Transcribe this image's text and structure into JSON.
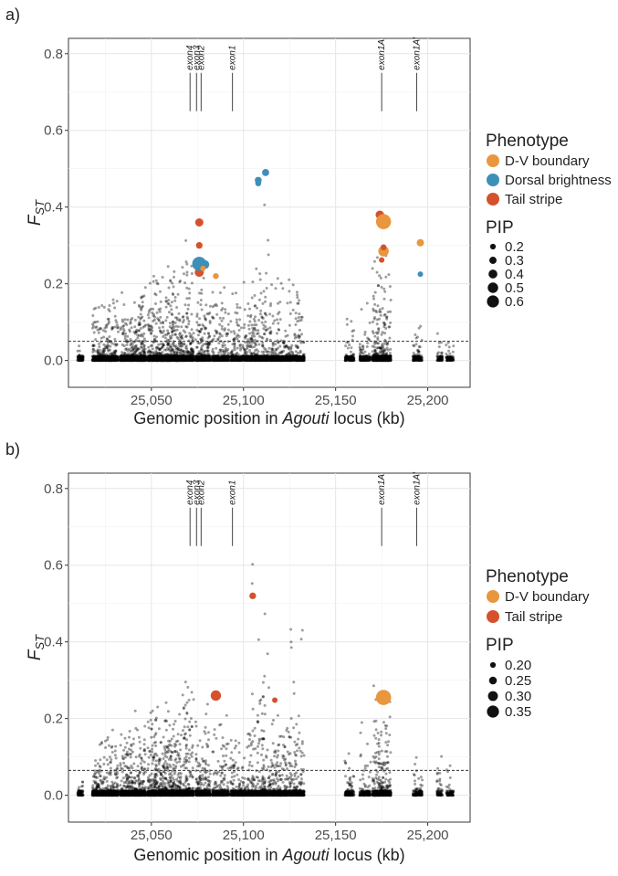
{
  "colors": {
    "dv_boundary": "#e8973f",
    "dorsal_brightness": "#3d8fb8",
    "tail_stripe": "#d4512c",
    "background_point": "#000000",
    "threshold": "#333333"
  },
  "chart_data": [
    {
      "panel": "a)",
      "type": "scatter",
      "xlabel_pre": "Genomic position in ",
      "xlabel_em": "Agouti",
      "xlabel_post": " locus (kb)",
      "ylabel_main": "F",
      "ylabel_sub": "ST",
      "xlim": [
        25005,
        25223
      ],
      "ylim": [
        -0.07,
        0.84
      ],
      "xticks": [
        25050,
        25100,
        25150,
        25200
      ],
      "xtick_labels": [
        "25,050",
        "25,100",
        "25,150",
        "25,200"
      ],
      "yticks": [
        0.0,
        0.2,
        0.4,
        0.6,
        0.8
      ],
      "ytick_labels": [
        "0.0",
        "0.2",
        "0.4",
        "0.6",
        "0.8"
      ],
      "threshold": 0.05,
      "exons": [
        {
          "name": "exon4",
          "x": 25071
        },
        {
          "name": "exon3",
          "x": 25074.5
        },
        {
          "name": "exon2",
          "x": 25077
        },
        {
          "name": "exon1",
          "x": 25094
        },
        {
          "name": "exon1A",
          "x": 25175
        },
        {
          "name": "exon1A'",
          "x": 25194
        }
      ],
      "legend_phenotype_title": "Phenotype",
      "legend_phenotype": [
        {
          "label": "D-V boundary",
          "color": "#e8973f"
        },
        {
          "label": "Dorsal brightness",
          "color": "#3d8fb8"
        },
        {
          "label": "Tail stripe",
          "color": "#d4512c"
        }
      ],
      "legend_pip_title": "PIP",
      "legend_pip": [
        {
          "label": "0.2",
          "value": 0.2
        },
        {
          "label": "0.3",
          "value": 0.3
        },
        {
          "label": "0.4",
          "value": 0.4
        },
        {
          "label": "0.5",
          "value": 0.5
        },
        {
          "label": "0.6",
          "value": 0.6
        }
      ],
      "pip_range": [
        0.2,
        0.6
      ],
      "highlights": [
        {
          "x": 25076,
          "y": 0.36,
          "phenotype": "Tail stripe",
          "pip": 0.32
        },
        {
          "x": 25076,
          "y": 0.3,
          "phenotype": "Tail stripe",
          "pip": 0.25
        },
        {
          "x": 25076,
          "y": 0.255,
          "phenotype": "Tail stripe",
          "pip": 0.38
        },
        {
          "x": 25076,
          "y": 0.23,
          "phenotype": "Tail stripe",
          "pip": 0.36
        },
        {
          "x": 25076,
          "y": 0.252,
          "phenotype": "Dorsal brightness",
          "pip": 0.58
        },
        {
          "x": 25079,
          "y": 0.25,
          "phenotype": "Dorsal brightness",
          "pip": 0.35
        },
        {
          "x": 25078,
          "y": 0.24,
          "phenotype": "D-V boundary",
          "pip": 0.2
        },
        {
          "x": 25085,
          "y": 0.22,
          "phenotype": "D-V boundary",
          "pip": 0.22
        },
        {
          "x": 25108,
          "y": 0.47,
          "phenotype": "Dorsal brightness",
          "pip": 0.26
        },
        {
          "x": 25108,
          "y": 0.462,
          "phenotype": "Dorsal brightness",
          "pip": 0.22
        },
        {
          "x": 25112,
          "y": 0.49,
          "phenotype": "Dorsal brightness",
          "pip": 0.27
        },
        {
          "x": 25174,
          "y": 0.38,
          "phenotype": "Tail stripe",
          "pip": 0.33
        },
        {
          "x": 25176,
          "y": 0.362,
          "phenotype": "D-V boundary",
          "pip": 0.62
        },
        {
          "x": 25176,
          "y": 0.285,
          "phenotype": "D-V boundary",
          "pip": 0.42
        },
        {
          "x": 25176,
          "y": 0.295,
          "phenotype": "Tail stripe",
          "pip": 0.22
        },
        {
          "x": 25175,
          "y": 0.262,
          "phenotype": "Tail stripe",
          "pip": 0.2
        },
        {
          "x": 25196,
          "y": 0.307,
          "phenotype": "D-V boundary",
          "pip": 0.28
        },
        {
          "x": 25196,
          "y": 0.225,
          "phenotype": "Dorsal brightness",
          "pip": 0.2
        }
      ]
    },
    {
      "panel": "b)",
      "type": "scatter",
      "xlabel_pre": "Genomic position in ",
      "xlabel_em": "Agouti",
      "xlabel_post": " locus (kb)",
      "ylabel_main": "F",
      "ylabel_sub": "ST",
      "xlim": [
        25005,
        25223
      ],
      "ylim": [
        -0.07,
        0.84
      ],
      "xticks": [
        25050,
        25100,
        25150,
        25200
      ],
      "xtick_labels": [
        "25,050",
        "25,100",
        "25,150",
        "25,200"
      ],
      "yticks": [
        0.0,
        0.2,
        0.4,
        0.6,
        0.8
      ],
      "ytick_labels": [
        "0.0",
        "0.2",
        "0.4",
        "0.6",
        "0.8"
      ],
      "threshold": 0.065,
      "exons": [
        {
          "name": "exon4",
          "x": 25071
        },
        {
          "name": "exon3",
          "x": 25074.5
        },
        {
          "name": "exon2",
          "x": 25077
        },
        {
          "name": "exon1",
          "x": 25094
        },
        {
          "name": "exon1A",
          "x": 25175
        },
        {
          "name": "exon1A'",
          "x": 25194
        }
      ],
      "legend_phenotype_title": "Phenotype",
      "legend_phenotype": [
        {
          "label": "D-V boundary",
          "color": "#e8973f"
        },
        {
          "label": "Tail stripe",
          "color": "#d4512c"
        }
      ],
      "legend_pip_title": "PIP",
      "legend_pip": [
        {
          "label": "0.20",
          "value": 0.2
        },
        {
          "label": "0.25",
          "value": 0.25
        },
        {
          "label": "0.30",
          "value": 0.3
        },
        {
          "label": "0.35",
          "value": 0.35
        }
      ],
      "pip_range": [
        0.2,
        0.35
      ],
      "highlights": [
        {
          "x": 25105,
          "y": 0.52,
          "phenotype": "Tail stripe",
          "pip": 0.22
        },
        {
          "x": 25085,
          "y": 0.26,
          "phenotype": "Tail stripe",
          "pip": 0.28
        },
        {
          "x": 25117,
          "y": 0.248,
          "phenotype": "Tail stripe",
          "pip": 0.2
        },
        {
          "x": 25176,
          "y": 0.255,
          "phenotype": "D-V boundary",
          "pip": 0.36
        }
      ]
    }
  ]
}
